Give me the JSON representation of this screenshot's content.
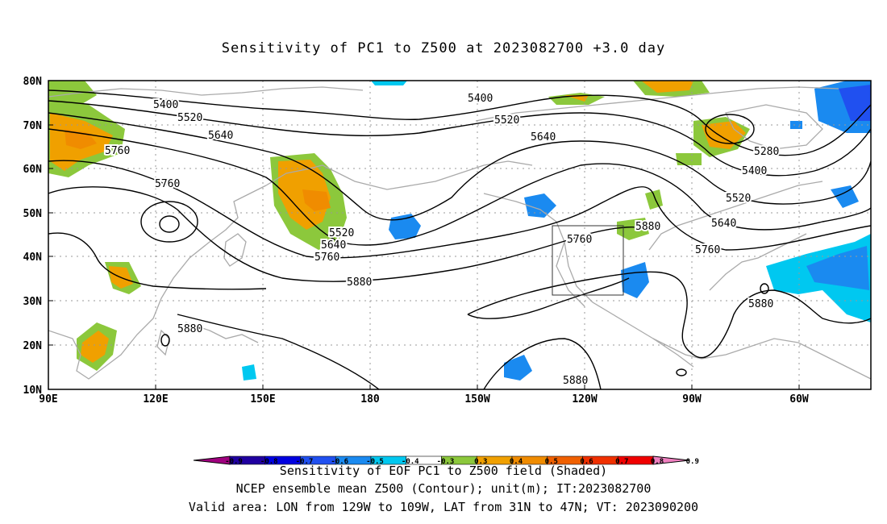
{
  "title": "Sensitivity of PC1 to Z500 at 2023082700 +3.0 day",
  "axes": {
    "lat_labels": [
      "80N",
      "70N",
      "60N",
      "50N",
      "40N",
      "30N",
      "20N",
      "10N"
    ],
    "lon_labels": [
      "90E",
      "120E",
      "150E",
      "180",
      "150W",
      "120W",
      "90W",
      "60W"
    ]
  },
  "contour_labels": {
    "c5400a": "5400",
    "c5400b": "5400",
    "c5400c": "5400",
    "c5520a": "5520",
    "c5520b": "5520",
    "c5520c": "5520",
    "c5520d": "5520",
    "c5640a": "5640",
    "c5640b": "5640",
    "c5640c": "5640",
    "c5640d": "5640",
    "c5760a": "5760",
    "c5760b": "5760",
    "c5760c": "5760",
    "c5760d": "5760",
    "c5760e": "5760",
    "c5880a": "5880",
    "c5880b": "5880",
    "c5880c": "5880",
    "c5880d": "5880",
    "c5880e": "5880",
    "c5280": "5280"
  },
  "colorbar": {
    "ticks": [
      "-0.9",
      "-0.8",
      "-0.7",
      "-0.6",
      "-0.5",
      "-0.4",
      "-0.3",
      "0.3",
      "0.4",
      "0.5",
      "0.6",
      "0.7",
      "0.8",
      "0.9"
    ],
    "colors": [
      "#a0007f",
      "#2000a0",
      "#0000e0",
      "#2050f0",
      "#1a8af0",
      "#00c8f0",
      "#ffffff",
      "#8cc83c",
      "#f0a000",
      "#f08c00",
      "#f06000",
      "#f03000",
      "#f00000",
      "#f080c0"
    ],
    "label": "Sensitivity of EOF PC1 to Z500 field (Shaded)"
  },
  "footer": {
    "line1": "NCEP ensemble mean Z500 (Contour); unit(m); IT:2023082700",
    "line2": "Valid area: LON from 129W to 109W, LAT from 31N to 47N; VT: 2023090200"
  }
}
